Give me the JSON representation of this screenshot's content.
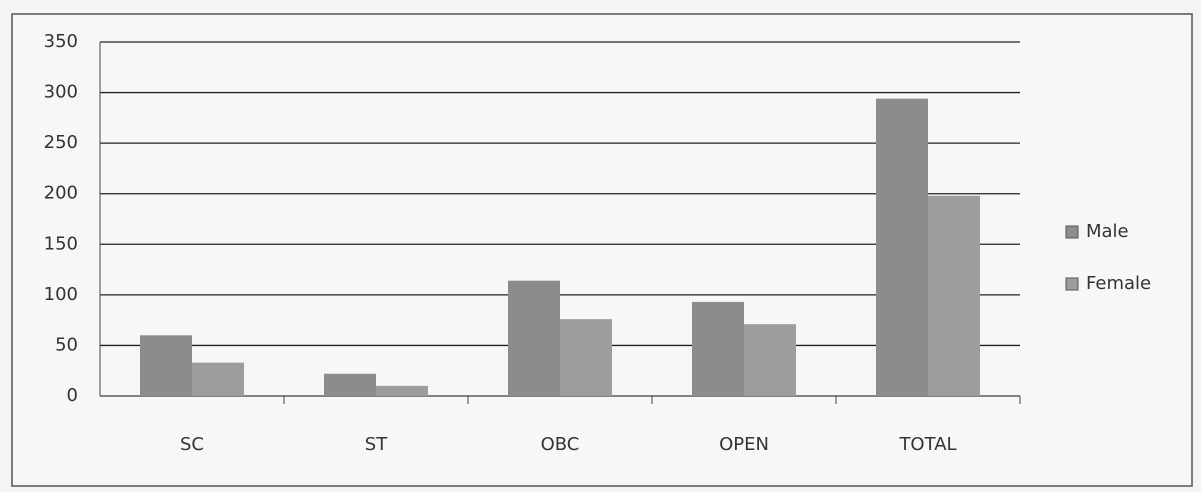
{
  "chart_data": {
    "type": "bar",
    "categories": [
      "SC",
      "ST",
      "OBC",
      "OPEN",
      "TOTAL"
    ],
    "series": [
      {
        "name": "Male",
        "color": "#8c8c8c",
        "values": [
          60,
          22,
          114,
          93,
          294
        ]
      },
      {
        "name": "Female",
        "color": "#9d9d9d",
        "values": [
          33,
          10,
          76,
          71,
          198
        ]
      }
    ],
    "ylim": [
      0,
      350
    ],
    "yticks": [
      0,
      50,
      100,
      150,
      200,
      250,
      300,
      350
    ],
    "grid": true,
    "legend": "right"
  }
}
